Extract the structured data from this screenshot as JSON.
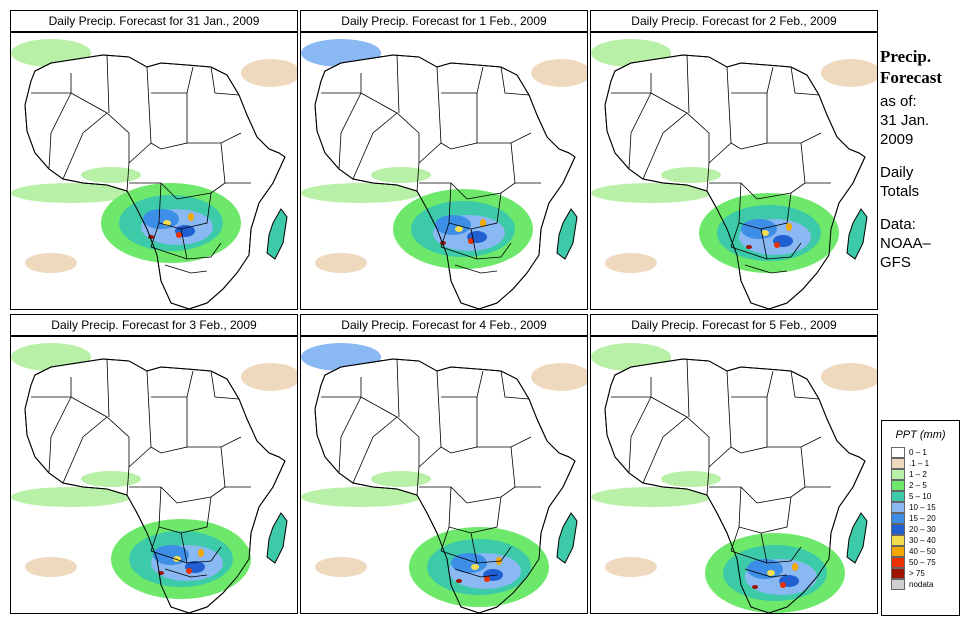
{
  "panels": [
    {
      "title": "Daily Precip. Forecast for  31 Jan., 2009",
      "day": "31 Jan"
    },
    {
      "title": "Daily Precip. Forecast for  1 Feb., 2009",
      "day": "1 Feb"
    },
    {
      "title": "Daily Precip. Forecast for  2 Feb., 2009",
      "day": "2 Feb"
    },
    {
      "title": "Daily Precip. Forecast for  3 Feb., 2009",
      "day": "3 Feb"
    },
    {
      "title": "Daily Precip. Forecast for  4 Feb., 2009",
      "day": "4 Feb"
    },
    {
      "title": "Daily Precip. Forecast for  5 Feb., 2009",
      "day": "5 Feb"
    }
  ],
  "side": {
    "heading_line1": "Precip.",
    "heading_line2": "Forecast",
    "asof_line1": "as of:",
    "asof_line2": "31 Jan.",
    "asof_line3": "2009",
    "totals_line1": "Daily",
    "totals_line2": "Totals",
    "data_line1": "Data:",
    "data_line2": "NOAA–",
    "data_line3": "GFS"
  },
  "legend": {
    "title": "PPT (mm)",
    "items": [
      {
        "label": "0 – 1",
        "color": "#ffffff"
      },
      {
        "label": ".1 – 1",
        "color": "#eed9bf"
      },
      {
        "label": "1 – 2",
        "color": "#b8f0a8"
      },
      {
        "label": "2 – 5",
        "color": "#6ee86a"
      },
      {
        "label": "5 – 10",
        "color": "#3ccaa8"
      },
      {
        "label": "10 – 15",
        "color": "#8ab8f2"
      },
      {
        "label": "15 – 20",
        "color": "#3c8ee6"
      },
      {
        "label": "20 – 30",
        "color": "#1f5fd2"
      },
      {
        "label": "30 – 40",
        "color": "#f2de50"
      },
      {
        "label": "40 – 50",
        "color": "#f2a800"
      },
      {
        "label": "50 – 75",
        "color": "#e83000"
      },
      {
        "label": "> 75",
        "color": "#9c1400"
      },
      {
        "label": "nodata",
        "color": "#cfcfcf"
      }
    ]
  }
}
